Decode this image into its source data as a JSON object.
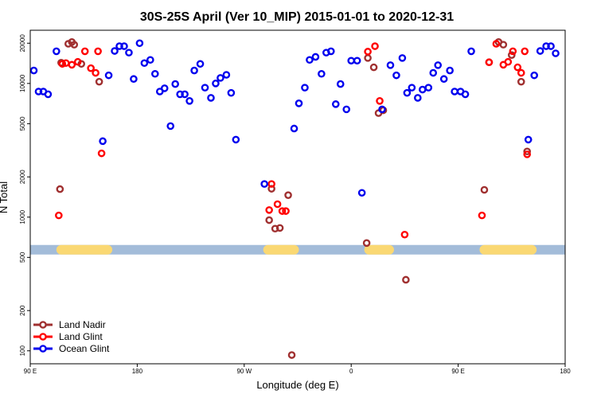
{
  "chart_data": {
    "type": "scatter",
    "title": "30S-25S April (Ver 10_MIP)   2015-01-01 to 2020-12-31",
    "xlabel": "Longitude (deg E)",
    "ylabel": "N Total",
    "x_scale": "longitude-unwrapped",
    "xlim": [
      90,
      540
    ],
    "y_scale": "log",
    "ylim": [
      80,
      25000
    ],
    "grid": false,
    "legend_position": "bottom-left",
    "x_ticks": [
      {
        "value": 90,
        "label": "90 E"
      },
      {
        "value": 180,
        "label": "180"
      },
      {
        "value": 270,
        "label": "90 W"
      },
      {
        "value": 360,
        "label": "0"
      },
      {
        "value": 450,
        "label": "90 E"
      },
      {
        "value": 540,
        "label": "180"
      }
    ],
    "y_ticks": [
      {
        "value": 100,
        "label": "100"
      },
      {
        "value": 200,
        "label": "200"
      },
      {
        "value": 500,
        "label": "500"
      },
      {
        "value": 1000,
        "label": "1000"
      },
      {
        "value": 2000,
        "label": "2000"
      },
      {
        "value": 5000,
        "label": "5000"
      },
      {
        "value": 10000,
        "label": "10000"
      },
      {
        "value": 20000,
        "label": "20000"
      }
    ],
    "band": {
      "y": 570,
      "color": "#a3bcd9",
      "land_color": "#fad873",
      "land_segments": [
        [
          116,
          155
        ],
        [
          290,
          312
        ],
        [
          375,
          392
        ],
        [
          472,
          512
        ]
      ]
    },
    "series": [
      {
        "name": "Land Nadir",
        "color": "#a03030",
        "points": [
          [
            115,
            1620
          ],
          [
            116,
            14300
          ],
          [
            122,
            19800
          ],
          [
            125,
            20400
          ],
          [
            127,
            19500
          ],
          [
            133,
            14000
          ],
          [
            148,
            10300
          ],
          [
            291,
            950
          ],
          [
            293,
            1630
          ],
          [
            296,
            820
          ],
          [
            300,
            830
          ],
          [
            307,
            1460
          ],
          [
            310,
            93
          ],
          [
            373,
            640
          ],
          [
            374,
            15500
          ],
          [
            379,
            13200
          ],
          [
            383,
            6000
          ],
          [
            387,
            6300
          ],
          [
            406,
            340
          ],
          [
            472,
            1600
          ],
          [
            476,
            14400
          ],
          [
            484,
            20400
          ],
          [
            488,
            19500
          ],
          [
            495,
            16300
          ],
          [
            503,
            10300
          ],
          [
            508,
            3100
          ]
        ]
      },
      {
        "name": "Land Glint",
        "color": "#ff0000",
        "points": [
          [
            114,
            1030
          ],
          [
            117,
            14000
          ],
          [
            120,
            14200
          ],
          [
            125,
            13800
          ],
          [
            130,
            14500
          ],
          [
            136,
            17400
          ],
          [
            141,
            13000
          ],
          [
            145,
            12000
          ],
          [
            147,
            17400
          ],
          [
            150,
            3000
          ],
          [
            291,
            1130
          ],
          [
            293,
            1770
          ],
          [
            298,
            1250
          ],
          [
            302,
            1110
          ],
          [
            305,
            1110
          ],
          [
            374,
            17300
          ],
          [
            380,
            19000
          ],
          [
            384,
            7400
          ],
          [
            405,
            740
          ],
          [
            470,
            1030
          ],
          [
            476,
            14400
          ],
          [
            482,
            19800
          ],
          [
            488,
            13800
          ],
          [
            492,
            14500
          ],
          [
            496,
            17400
          ],
          [
            500,
            13200
          ],
          [
            503,
            12000
          ],
          [
            506,
            17400
          ],
          [
            508,
            2950
          ]
        ]
      },
      {
        "name": "Ocean Glint",
        "color": "#0000ee",
        "points": [
          [
            93,
            12500
          ],
          [
            97,
            8700
          ],
          [
            101,
            8700
          ],
          [
            105,
            8300
          ],
          [
            112,
            17400
          ],
          [
            151,
            3700
          ],
          [
            156,
            11500
          ],
          [
            161,
            17500
          ],
          [
            165,
            19000
          ],
          [
            169,
            19000
          ],
          [
            173,
            17000
          ],
          [
            177,
            10800
          ],
          [
            182,
            20000
          ],
          [
            186,
            14200
          ],
          [
            191,
            15000
          ],
          [
            195,
            11800
          ],
          [
            199,
            8700
          ],
          [
            203,
            9200
          ],
          [
            208,
            4800
          ],
          [
            212,
            9900
          ],
          [
            216,
            8300
          ],
          [
            220,
            8300
          ],
          [
            224,
            7400
          ],
          [
            228,
            12500
          ],
          [
            233,
            14000
          ],
          [
            237,
            9300
          ],
          [
            242,
            7800
          ],
          [
            246,
            10000
          ],
          [
            250,
            11000
          ],
          [
            255,
            11600
          ],
          [
            259,
            8500
          ],
          [
            263,
            3800
          ],
          [
            287,
            1770
          ],
          [
            312,
            4600
          ],
          [
            316,
            7100
          ],
          [
            321,
            9300
          ],
          [
            325,
            15000
          ],
          [
            330,
            15800
          ],
          [
            335,
            11800
          ],
          [
            339,
            17000
          ],
          [
            343,
            17400
          ],
          [
            347,
            7000
          ],
          [
            351,
            9900
          ],
          [
            356,
            6400
          ],
          [
            360,
            14800
          ],
          [
            365,
            14800
          ],
          [
            369,
            1520
          ],
          [
            386,
            6400
          ],
          [
            393,
            13700
          ],
          [
            398,
            11500
          ],
          [
            403,
            15500
          ],
          [
            407,
            8500
          ],
          [
            411,
            9300
          ],
          [
            416,
            7800
          ],
          [
            420,
            9000
          ],
          [
            425,
            9300
          ],
          [
            429,
            12000
          ],
          [
            433,
            13700
          ],
          [
            438,
            10800
          ],
          [
            443,
            12500
          ],
          [
            447,
            8700
          ],
          [
            452,
            8700
          ],
          [
            456,
            8300
          ],
          [
            461,
            17400
          ],
          [
            509,
            3800
          ],
          [
            514,
            11500
          ],
          [
            519,
            17500
          ],
          [
            524,
            19000
          ],
          [
            528,
            19000
          ],
          [
            532,
            16800
          ]
        ]
      }
    ]
  }
}
